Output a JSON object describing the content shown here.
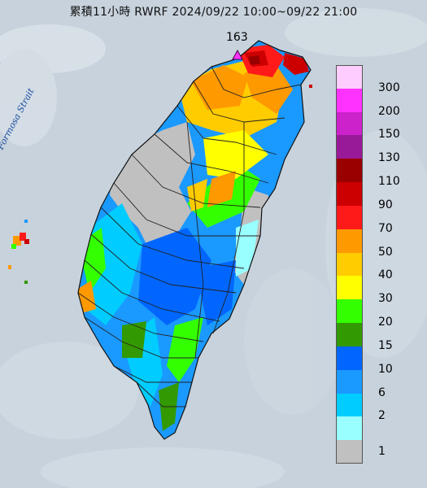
{
  "title": "累積11小時 RWRF 2024/09/22 10:00~09/22 21:00",
  "peak": {
    "value": "163",
    "marker": "triangle-marker"
  },
  "sea_label": "Formosa Strait",
  "legend": {
    "levels": [
      {
        "label": "300",
        "color": "#ffccff"
      },
      {
        "label": "200",
        "color": "#ff33ff"
      },
      {
        "label": "150",
        "color": "#cc22cc"
      },
      {
        "label": "130",
        "color": "#991a99"
      },
      {
        "label": "110",
        "color": "#990000"
      },
      {
        "label": "90",
        "color": "#cc0000"
      },
      {
        "label": "70",
        "color": "#ff1a1a"
      },
      {
        "label": "50",
        "color": "#ff9900"
      },
      {
        "label": "40",
        "color": "#ffcc00"
      },
      {
        "label": "30",
        "color": "#ffff00"
      },
      {
        "label": "20",
        "color": "#33ff00"
      },
      {
        "label": "15",
        "color": "#339900"
      },
      {
        "label": "10",
        "color": "#0066ff"
      },
      {
        "label": "6",
        "color": "#1a99ff"
      },
      {
        "label": "2",
        "color": "#00ccff"
      },
      {
        "label": "1",
        "color": "#99ffff"
      },
      {
        "label": "",
        "color": "#c0c0c0"
      }
    ]
  }
}
